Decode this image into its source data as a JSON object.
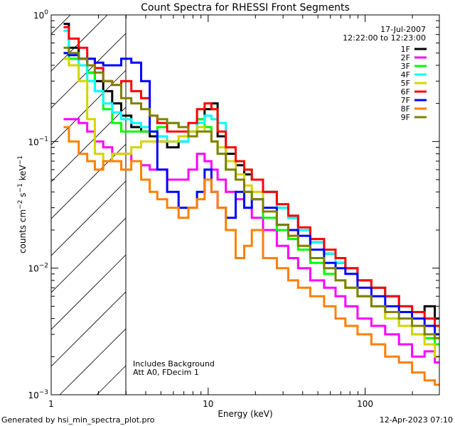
{
  "chart_data": {
    "type": "line",
    "title": "Count Spectra for RHESSI Front Segments",
    "xlabel": "Energy (keV)",
    "ylabel": "counts cm^-2 s^-1 keV^-1",
    "xscale": "log",
    "yscale": "log",
    "xlim": [
      1,
      297
    ],
    "ylim": [
      0.001,
      1
    ],
    "x_ticks": [
      {
        "v": 1,
        "label": "1"
      },
      {
        "v": 10,
        "label": "10"
      },
      {
        "v": 100,
        "label": "100"
      }
    ],
    "y_ticks": [
      {
        "v": 1,
        "base": "10",
        "exp": "0"
      },
      {
        "v": 0.1,
        "base": "10",
        "exp": "−1"
      },
      {
        "v": 0.01,
        "base": "10",
        "exp": "−2"
      },
      {
        "v": 0.001,
        "base": "10",
        "exp": "−3"
      }
    ],
    "date": "17-Jul-2007",
    "time_range": "12:22:00 to 12:23:00",
    "annotations": [
      "Includes Background",
      "Att A0, FDecim 1"
    ],
    "hatched_region_keV": [
      1,
      3
    ],
    "legend_placement": "top-right",
    "x": [
      1.2,
      1.4,
      1.6,
      1.8,
      2.0,
      2.3,
      2.6,
      3.0,
      3.5,
      4,
      4.5,
      5,
      6,
      7,
      8,
      9,
      10,
      11,
      12,
      14,
      16,
      18,
      20,
      25,
      30,
      35,
      40,
      50,
      60,
      70,
      80,
      100,
      120,
      150,
      180,
      220,
      260,
      297
    ],
    "series": [
      {
        "name": "1F",
        "color": "#000000",
        "values": [
          0.85,
          0.55,
          0.45,
          0.35,
          0.3,
          0.25,
          0.2,
          0.16,
          0.13,
          0.12,
          0.11,
          0.1,
          0.09,
          0.1,
          0.12,
          0.15,
          0.18,
          0.2,
          0.11,
          0.08,
          0.065,
          0.055,
          0.05,
          0.04,
          0.03,
          0.025,
          0.02,
          0.016,
          0.013,
          0.011,
          0.01,
          0.008,
          0.007,
          0.006,
          0.005,
          0.0045,
          0.005,
          0.004
        ]
      },
      {
        "name": "2F",
        "color": "#ff00ff",
        "values": [
          0.15,
          0.15,
          0.14,
          0.12,
          0.1,
          0.09,
          0.08,
          0.08,
          0.07,
          0.065,
          0.06,
          0.06,
          0.05,
          0.05,
          0.06,
          0.08,
          0.07,
          0.06,
          0.05,
          0.04,
          0.035,
          0.03,
          0.025,
          0.02,
          0.015,
          0.012,
          0.01,
          0.008,
          0.007,
          0.006,
          0.005,
          0.004,
          0.0035,
          0.003,
          0.0025,
          0.002,
          0.0022,
          0.0018
        ]
      },
      {
        "name": "3F",
        "color": "#00ff00",
        "values": [
          0.5,
          0.45,
          0.4,
          0.35,
          0.25,
          0.18,
          0.14,
          0.12,
          0.12,
          0.12,
          0.12,
          0.13,
          0.14,
          0.13,
          0.12,
          0.15,
          0.13,
          0.1,
          0.08,
          0.06,
          0.05,
          0.04,
          0.035,
          0.025,
          0.02,
          0.017,
          0.014,
          0.011,
          0.009,
          0.008,
          0.007,
          0.006,
          0.005,
          0.004,
          0.0035,
          0.003,
          0.0028,
          0.0025
        ]
      },
      {
        "name": "4F",
        "color": "#00ffff",
        "values": [
          0.75,
          0.5,
          0.4,
          0.3,
          0.25,
          0.2,
          0.17,
          0.15,
          0.14,
          0.13,
          0.12,
          0.11,
          0.1,
          0.1,
          0.12,
          0.14,
          0.16,
          0.15,
          0.14,
          0.09,
          0.07,
          0.06,
          0.05,
          0.04,
          0.03,
          0.025,
          0.02,
          0.016,
          0.013,
          0.011,
          0.01,
          0.008,
          0.007,
          0.006,
          0.005,
          0.0045,
          0.004,
          0.0035
        ]
      },
      {
        "name": "5F",
        "color": "#d4d400",
        "values": [
          0.45,
          0.4,
          0.3,
          0.15,
          0.08,
          0.07,
          0.08,
          0.08,
          0.09,
          0.1,
          0.1,
          0.1,
          0.1,
          0.11,
          0.12,
          0.13,
          0.12,
          0.1,
          0.09,
          0.07,
          0.055,
          0.045,
          0.04,
          0.03,
          0.022,
          0.018,
          0.015,
          0.012,
          0.01,
          0.008,
          0.007,
          0.006,
          0.005,
          0.004,
          0.0035,
          0.003,
          0.0025,
          0.002
        ]
      },
      {
        "name": "6F",
        "color": "#ff0000",
        "values": [
          0.8,
          0.65,
          0.55,
          0.45,
          0.38,
          0.3,
          0.28,
          0.3,
          0.25,
          0.22,
          0.16,
          0.14,
          0.12,
          0.12,
          0.14,
          0.18,
          0.2,
          0.18,
          0.12,
          0.09,
          0.07,
          0.06,
          0.05,
          0.04,
          0.032,
          0.026,
          0.021,
          0.017,
          0.014,
          0.012,
          0.01,
          0.008,
          0.007,
          0.006,
          0.005,
          0.0045,
          0.004,
          0.0035
        ]
      },
      {
        "name": "7F",
        "color": "#0000ff",
        "values": [
          0.5,
          0.48,
          0.45,
          0.45,
          0.42,
          0.4,
          0.4,
          0.45,
          0.42,
          0.3,
          0.12,
          0.06,
          0.04,
          0.03,
          0.03,
          0.04,
          0.06,
          0.04,
          0.03,
          0.025,
          0.04,
          0.03,
          0.035,
          0.03,
          0.022,
          0.02,
          0.018,
          0.014,
          0.011,
          0.01,
          0.009,
          0.007,
          0.006,
          0.005,
          0.0045,
          0.004,
          0.0035,
          0.003
        ]
      },
      {
        "name": "8F",
        "color": "#ff8000",
        "values": [
          0.13,
          0.1,
          0.08,
          0.07,
          0.06,
          0.07,
          0.07,
          0.06,
          0.07,
          0.05,
          0.04,
          0.035,
          0.03,
          0.025,
          0.03,
          0.035,
          0.05,
          0.04,
          0.03,
          0.02,
          0.012,
          0.015,
          0.02,
          0.012,
          0.01,
          0.008,
          0.007,
          0.006,
          0.005,
          0.004,
          0.0035,
          0.003,
          0.0025,
          0.002,
          0.0018,
          0.0015,
          0.0013,
          0.0012
        ]
      },
      {
        "name": "9F",
        "color": "#808000",
        "values": [
          0.55,
          0.5,
          0.45,
          0.4,
          0.35,
          0.3,
          0.28,
          0.22,
          0.2,
          0.18,
          0.16,
          0.15,
          0.14,
          0.13,
          0.11,
          0.12,
          0.12,
          0.1,
          0.08,
          0.06,
          0.05,
          0.04,
          0.035,
          0.028,
          0.022,
          0.018,
          0.015,
          0.012,
          0.01,
          0.008,
          0.007,
          0.006,
          0.005,
          0.0045,
          0.004,
          0.0035,
          0.003,
          0.0028
        ]
      }
    ]
  },
  "footer": {
    "generated_by": "Generated by hsi_min_spectra_plot.pro",
    "timestamp": "12-Apr-2023 07:10"
  }
}
